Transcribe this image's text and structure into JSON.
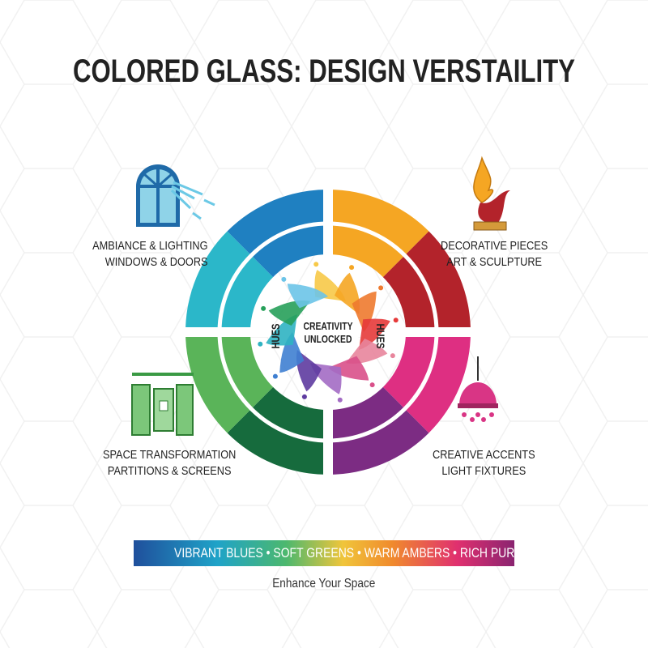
{
  "title": "COLORED GLASS: DESIGN VERSTAILITY",
  "center": {
    "text_line1": "CREATIVITY",
    "text_line2": "UNLOCKED",
    "left_word": "HUES",
    "right_word": "HUES"
  },
  "quadrants": [
    {
      "id": "top-left",
      "line1": "AMBIANCE & LIGHTING",
      "line2": "WINDOWS & DOORS",
      "icon": "arched-window-icon",
      "colors": [
        "#2bb7c9",
        "#1f80c1"
      ]
    },
    {
      "id": "top-right",
      "line1": "DECORATIVE PIECES",
      "line2": "ART & SCULPTURE",
      "icon": "glass-sculpture-icon",
      "colors": [
        "#f5a623",
        "#b3232b"
      ]
    },
    {
      "id": "bottom-right",
      "line1": "CREATIVE ACCENTS",
      "line2": "LIGHT FIXTURES",
      "icon": "pendant-lamp-icon",
      "colors": [
        "#de2f82",
        "#7c2c83"
      ]
    },
    {
      "id": "bottom-left",
      "line1": "SPACE TRANSFORMATION",
      "line2": "PARTITIONS & SCREENS",
      "icon": "glass-partition-icon",
      "colors": [
        "#166b3d",
        "#5ab459"
      ]
    }
  ],
  "swirl_colors": [
    "#f7c948",
    "#f5a623",
    "#ee7a2f",
    "#e63a3a",
    "#e8859c",
    "#d9508a",
    "#a36bc4",
    "#5e3ba0",
    "#3f7fd1",
    "#2fb3c2",
    "#27a05a",
    "#6cc4e8"
  ],
  "banner": {
    "text": "VIBRANT BLUES • SOFT GREENS • WARM AMBERS • RICH PURPLES"
  },
  "tagline": "Enhance Your Space"
}
